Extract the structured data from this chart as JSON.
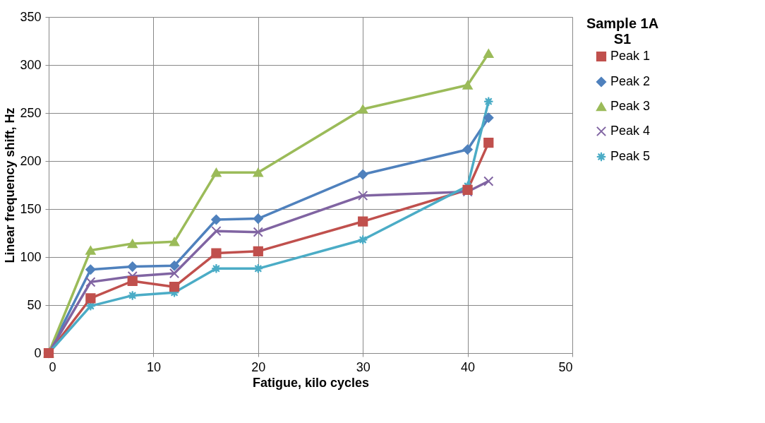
{
  "chart_data": {
    "type": "line",
    "xlabel": "Fatigue, kilo cycles",
    "ylabel": "Linear frequency shift, Hz",
    "legend_title": "Sample 1A\nS1",
    "legend": "right",
    "grid": true,
    "line_style": "solid",
    "x": [
      0,
      4,
      8,
      12,
      16,
      20,
      30,
      40,
      42
    ],
    "xlim": [
      0,
      50
    ],
    "xticks": [
      0,
      10,
      20,
      30,
      40,
      50
    ],
    "ylim": [
      0,
      350
    ],
    "yticks": [
      0,
      50,
      100,
      150,
      200,
      250,
      300,
      350
    ],
    "series": [
      {
        "name": "Peak 1",
        "color": "#c0504d",
        "marker": "square",
        "values": [
          0,
          57,
          75,
          69,
          104,
          106,
          137,
          170,
          219
        ]
      },
      {
        "name": "Peak 2",
        "color": "#4f81bd",
        "marker": "diamond",
        "values": [
          0,
          87,
          90,
          91,
          139,
          140,
          186,
          212,
          245
        ]
      },
      {
        "name": "Peak 3",
        "color": "#9bbb59",
        "marker": "triangle",
        "values": [
          0,
          107,
          114,
          116,
          188,
          188,
          254,
          279,
          312
        ]
      },
      {
        "name": "Peak 4",
        "color": "#8064a2",
        "marker": "cross",
        "values": [
          0,
          74,
          80,
          83,
          127,
          126,
          164,
          168,
          179
        ]
      },
      {
        "name": "Peak 5",
        "color": "#4bacc6",
        "marker": "star",
        "values": [
          0,
          49,
          60,
          63,
          88,
          88,
          118,
          174,
          262
        ]
      }
    ]
  }
}
